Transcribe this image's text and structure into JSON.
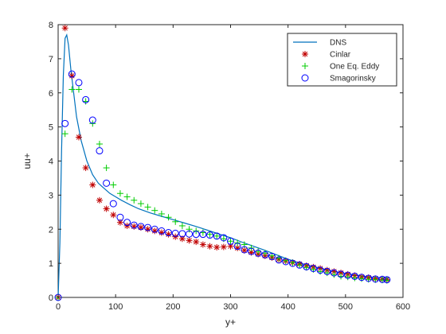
{
  "chart_data": {
    "type": "line",
    "xlabel": "y+",
    "ylabel": "uu+",
    "xlim": [
      0,
      600
    ],
    "ylim": [
      0,
      8
    ],
    "xticks": [
      0,
      100,
      200,
      300,
      400,
      500,
      600
    ],
    "yticks": [
      0,
      1,
      2,
      3,
      4,
      5,
      6,
      7,
      8
    ],
    "grid": false,
    "legend_position": "top-right",
    "series": [
      {
        "name": "DNS",
        "kind": "line",
        "color": "#0072BD",
        "x": [
          0,
          3,
          6,
          9,
          12,
          15,
          18,
          22,
          27,
          32,
          40,
          50,
          60,
          70,
          80,
          90,
          100,
          110,
          125,
          140,
          160,
          180,
          200,
          220,
          240,
          260,
          280,
          300,
          320,
          340,
          360,
          380,
          400,
          420,
          440,
          460,
          480,
          500,
          520,
          540,
          560,
          575
        ],
        "y": [
          0,
          1.6,
          4.3,
          6.5,
          7.6,
          7.7,
          7.4,
          6.7,
          6.0,
          5.3,
          4.6,
          4.0,
          3.6,
          3.35,
          3.2,
          3.05,
          2.95,
          2.85,
          2.72,
          2.6,
          2.48,
          2.38,
          2.28,
          2.18,
          2.08,
          1.97,
          1.86,
          1.75,
          1.62,
          1.5,
          1.38,
          1.25,
          1.12,
          1.01,
          0.92,
          0.84,
          0.76,
          0.7,
          0.65,
          0.6,
          0.58,
          0.57
        ]
      },
      {
        "name": "Cinlar",
        "kind": "star",
        "color": "#C00000",
        "x": [
          0,
          12,
          24,
          36,
          48,
          60,
          72,
          84,
          96,
          108,
          120,
          132,
          144,
          156,
          168,
          180,
          192,
          204,
          216,
          228,
          240,
          252,
          264,
          276,
          288,
          300,
          312,
          324,
          336,
          348,
          360,
          372,
          384,
          396,
          408,
          420,
          432,
          444,
          456,
          468,
          480,
          492,
          504,
          516,
          528,
          540,
          552,
          564,
          572
        ],
        "y": [
          0,
          7.9,
          6.5,
          4.7,
          3.8,
          3.3,
          2.85,
          2.6,
          2.42,
          2.2,
          2.1,
          2.08,
          2.05,
          2.0,
          1.95,
          1.9,
          1.85,
          1.78,
          1.72,
          1.67,
          1.63,
          1.55,
          1.5,
          1.47,
          1.48,
          1.5,
          1.45,
          1.38,
          1.32,
          1.27,
          1.22,
          1.17,
          1.12,
          1.07,
          1.02,
          0.98,
          0.93,
          0.89,
          0.85,
          0.8,
          0.76,
          0.72,
          0.68,
          0.64,
          0.6,
          0.58,
          0.55,
          0.53,
          0.52
        ]
      },
      {
        "name": "One Eq. Eddy",
        "kind": "plus",
        "color": "#00CC00",
        "x": [
          0,
          12,
          24,
          36,
          48,
          60,
          72,
          84,
          96,
          108,
          120,
          132,
          144,
          156,
          168,
          180,
          192,
          204,
          216,
          228,
          240,
          252,
          264,
          276,
          288,
          300,
          312,
          324,
          336,
          348,
          360,
          372,
          384,
          396,
          408,
          420,
          432,
          444,
          456,
          468,
          480,
          492,
          504,
          516,
          528,
          540,
          552,
          564,
          572
        ],
        "y": [
          0,
          4.8,
          6.1,
          6.1,
          5.75,
          5.1,
          4.5,
          3.8,
          3.3,
          3.05,
          2.95,
          2.85,
          2.75,
          2.65,
          2.55,
          2.45,
          2.35,
          2.22,
          2.1,
          2.0,
          1.95,
          1.9,
          1.85,
          1.8,
          1.72,
          1.65,
          1.6,
          1.55,
          1.45,
          1.35,
          1.3,
          1.22,
          1.15,
          1.08,
          1.02,
          0.95,
          0.88,
          0.82,
          0.76,
          0.72,
          0.67,
          0.62,
          0.6,
          0.57,
          0.55,
          0.53,
          0.52,
          0.51,
          0.5
        ]
      },
      {
        "name": "Smagorinsky",
        "kind": "circle",
        "color": "#0000FF",
        "x": [
          0,
          12,
          24,
          36,
          48,
          60,
          72,
          84,
          96,
          108,
          120,
          132,
          144,
          156,
          168,
          180,
          192,
          204,
          216,
          228,
          240,
          252,
          264,
          276,
          288,
          300,
          312,
          324,
          336,
          348,
          360,
          372,
          384,
          396,
          408,
          420,
          432,
          444,
          456,
          468,
          480,
          492,
          504,
          516,
          528,
          540,
          552,
          564,
          572
        ],
        "y": [
          0,
          5.1,
          6.55,
          6.3,
          5.8,
          5.2,
          4.3,
          3.35,
          2.75,
          2.35,
          2.2,
          2.12,
          2.08,
          2.05,
          2.0,
          1.95,
          1.9,
          1.88,
          1.87,
          1.86,
          1.85,
          1.85,
          1.83,
          1.8,
          1.75,
          1.65,
          1.5,
          1.4,
          1.35,
          1.3,
          1.25,
          1.2,
          1.1,
          1.05,
          1.0,
          0.95,
          0.9,
          0.85,
          0.8,
          0.76,
          0.72,
          0.68,
          0.65,
          0.62,
          0.59,
          0.56,
          0.54,
          0.53,
          0.52
        ]
      }
    ]
  }
}
